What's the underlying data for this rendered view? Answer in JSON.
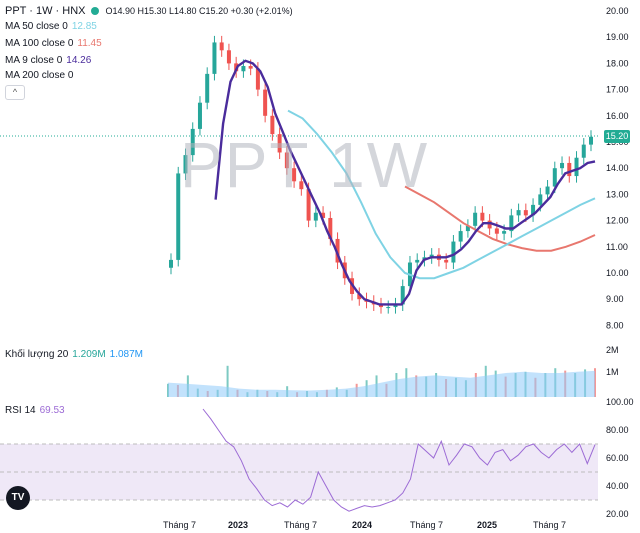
{
  "header": {
    "symbol": "PPT · 1W · HNX",
    "ohlc": "O14.90 H15.30 L14.80 C15.20 +0.30 (+2.01%)"
  },
  "indicators": {
    "ma50": {
      "label": "MA 50 close 0",
      "value": "12.85",
      "color": "#7fd3e4"
    },
    "ma100": {
      "label": "MA 100 close 0",
      "value": "11.45",
      "color": "#e8776e"
    },
    "ma9": {
      "label": "MA 9 close 0",
      "value": "14.26",
      "color": "#4a2c9c"
    },
    "ma200": {
      "label": "MA 200 close 0",
      "value": ""
    },
    "collapse_glyph": "^"
  },
  "volume_legend": {
    "label": "Khối lượng 20",
    "v1": "1.209M",
    "v2": "1.087M"
  },
  "rsi_legend": {
    "label": "RSI 14",
    "value": "69.53"
  },
  "watermark": "PPT 1W",
  "last_price": "15.20",
  "logo_text": "TV",
  "chart_data": {
    "type": "candlestick",
    "price_axis": {
      "ticks": [
        "20.00",
        "19.00",
        "18.00",
        "17.00",
        "16.00",
        "15.00",
        "14.00",
        "13.00",
        "12.00",
        "11.00",
        "10.00",
        "9.00",
        "8.00"
      ]
    },
    "volume_axis": {
      "ticks": [
        "2M",
        "1M"
      ]
    },
    "rsi_axis": {
      "ticks": [
        "100.00",
        "80.00",
        "60.00",
        "40.00",
        "20.00"
      ]
    },
    "time_axis": {
      "labels": [
        "Tháng 7",
        "2023",
        "Tháng 7",
        "2024",
        "Tháng 7",
        "2025",
        "Tháng 7"
      ]
    },
    "price_closes": [
      10.5,
      13.8,
      14.5,
      15.5,
      16.5,
      17.6,
      18.8,
      18.5,
      18.0,
      17.7,
      17.9,
      17.8,
      17.0,
      16.0,
      15.3,
      14.6,
      14.0,
      13.5,
      13.2,
      12.0,
      12.3,
      12.1,
      11.3,
      10.4,
      9.8,
      9.2,
      9.0,
      8.9,
      8.8,
      8.7,
      8.7,
      8.8,
      9.5,
      10.4,
      10.5,
      10.6,
      10.7,
      10.5,
      10.4,
      11.2,
      11.6,
      11.8,
      12.3,
      12.0,
      11.7,
      11.5,
      11.6,
      12.2,
      12.4,
      12.2,
      12.6,
      13.0,
      13.3,
      14.0,
      14.2,
      13.7,
      14.4,
      14.9,
      15.2
    ],
    "ma9": [
      null,
      null,
      null,
      null,
      null,
      null,
      12.8,
      15.7,
      17.3,
      17.9,
      18.1,
      18.0,
      17.7,
      17.1,
      16.1,
      15.4,
      14.7,
      14.1,
      13.5,
      12.9,
      12.3,
      11.6,
      11.0,
      10.3,
      9.7,
      9.3,
      9.0,
      8.9,
      8.8,
      8.8,
      8.8,
      8.8,
      9.2,
      10.1,
      10.5,
      10.6,
      10.6,
      10.6,
      10.7,
      10.9,
      11.2,
      11.6,
      11.9,
      11.9,
      11.8,
      11.7,
      11.7,
      11.9,
      12.1,
      12.3,
      12.6,
      12.9,
      13.4,
      13.8,
      13.9,
      14.0,
      14.2,
      14.26
    ],
    "ma50": [
      16.2,
      15.9,
      15.3,
      14.6,
      13.8,
      12.7,
      11.5,
      10.6,
      10.0,
      9.8,
      9.8,
      10.0,
      10.2,
      10.5,
      10.8,
      11.1,
      11.4,
      11.7,
      12.0,
      12.3,
      12.6,
      12.85
    ],
    "ma100": [
      13.3,
      13.0,
      12.7,
      12.3,
      11.9,
      11.6,
      11.3,
      11.1,
      10.95,
      10.85,
      10.85,
      11.0,
      11.2,
      11.45
    ],
    "volumes": [
      0.55,
      0.5,
      0.9,
      0.35,
      0.25,
      0.3,
      1.3,
      0.3,
      0.2,
      0.3,
      0.25,
      0.2,
      0.45,
      0.2,
      0.25,
      0.2,
      0.3,
      0.4,
      0.3,
      0.55,
      0.7,
      0.9,
      0.55,
      1.0,
      1.2,
      0.9,
      0.85,
      1.0,
      0.75,
      0.8,
      0.7,
      1.0,
      1.3,
      1.1,
      0.85,
      1.0,
      1.05,
      0.8,
      1.0,
      1.2,
      1.1,
      1.0,
      1.15,
      1.2
    ],
    "vol_ma": [
      0.6,
      0.55,
      0.5,
      0.45,
      0.35,
      0.3,
      0.3,
      0.28,
      0.27,
      0.3,
      0.35,
      0.45,
      0.6,
      0.75,
      0.85,
      0.9,
      0.85,
      0.8,
      0.9,
      1.0,
      1.05,
      1.0,
      1.0,
      1.05,
      1.087
    ],
    "rsi": [
      95,
      88,
      80,
      72,
      68,
      58,
      45,
      38,
      30,
      26,
      28,
      25,
      30,
      27,
      32,
      50,
      40,
      30,
      25,
      22,
      24,
      26,
      25,
      26,
      28,
      30,
      35,
      45,
      70,
      65,
      60,
      72,
      55,
      62,
      70,
      68,
      60,
      55,
      64,
      66,
      58,
      62,
      68,
      70,
      64,
      60,
      66,
      70,
      64,
      70,
      56,
      69.53
    ],
    "rsi_bands": [
      70,
      50,
      30
    ],
    "colors": {
      "up": "#26a69a",
      "down": "#ef5350",
      "rsi": "#9c6bd5",
      "band": "#efe8f7",
      "grid": "#bdbdbd"
    }
  }
}
